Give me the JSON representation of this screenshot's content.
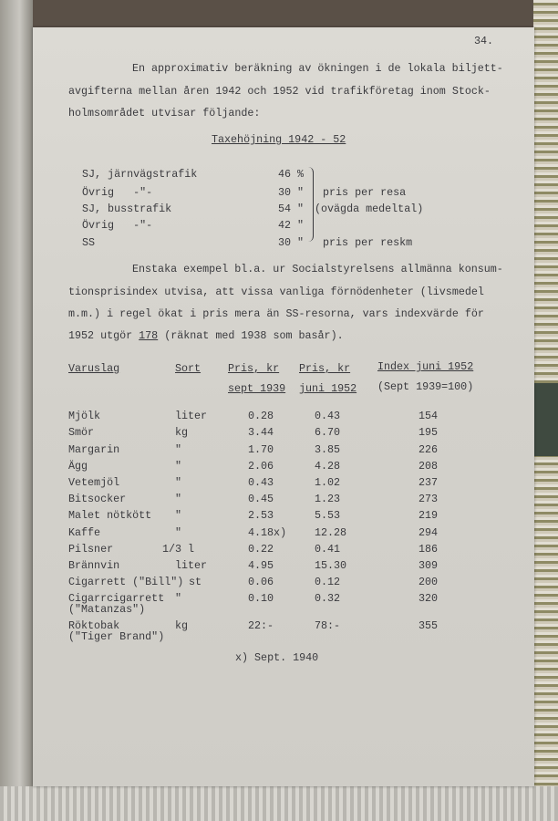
{
  "page_number": "34.",
  "intro_lines": [
    "En approximativ beräkning av ökningen i de lokala biljett-",
    "avgifterna mellan åren 1942 och 1952 vid trafikföretag inom Stock-",
    "holmsområdet utvisar följande:"
  ],
  "fare_table": {
    "title": "Taxehöjning 1942 - 52",
    "rows": [
      {
        "label": "SJ, järnvägstrafik",
        "value": "46 %"
      },
      {
        "label": "Övrig   -\"-",
        "value": "30 \""
      },
      {
        "label": "SJ, busstrafik",
        "value": "54 \""
      },
      {
        "label": "Övrig   -\"-",
        "value": "42 \""
      },
      {
        "label": "SS",
        "value": "30 \""
      }
    ],
    "brace_note_1": "pris per resa",
    "brace_note_2": "(ovägda medeltal)",
    "ss_note": "pris per reskm"
  },
  "paragraph2": {
    "line1": "Enstaka exempel bl.a. ur Socialstyrelsens allmänna konsum-",
    "line2": "tionsprisindex utvisa, att vissa vanliga förnödenheter (livsmedel",
    "line3": "m.m.) i regel ökat i pris mera än SS-resorna, vars indexvärde för",
    "line4_pre": "1952 utgör ",
    "line4_value": "178",
    "line4_post": " (räknat med 1938 som basår)."
  },
  "price_table": {
    "headers": {
      "item": "Varuslag",
      "unit": "Sort",
      "price1_a": "Pris, kr",
      "price1_b": "sept 1939",
      "price2_a": "Pris, kr",
      "price2_b": "juni 1952",
      "index_a": "Index juni 1952",
      "index_b": "(Sept 1939=100)"
    },
    "rows": [
      {
        "item": "Mjölk",
        "item2": "",
        "unit": "liter",
        "p1": "0.28",
        "p2": "0.43",
        "index": "154"
      },
      {
        "item": "Smör",
        "item2": "",
        "unit": "kg",
        "p1": "3.44",
        "p2": "6.70",
        "index": "195"
      },
      {
        "item": "Margarin",
        "item2": "",
        "unit": "\"",
        "p1": "1.70",
        "p2": "3.85",
        "index": "226"
      },
      {
        "item": "Ägg",
        "item2": "",
        "unit": "\"",
        "p1": "2.06",
        "p2": "4.28",
        "index": "208"
      },
      {
        "item": "Vetemjöl",
        "item2": "",
        "unit": "\"",
        "p1": "0.43",
        "p2": "1.02",
        "index": "237"
      },
      {
        "item": "Bitsocker",
        "item2": "",
        "unit": "\"",
        "p1": "0.45",
        "p2": "1.23",
        "index": "273"
      },
      {
        "item": "Malet nötkött",
        "item2": "",
        "unit": "\"",
        "p1": "2.53",
        "p2": "5.53",
        "index": "219"
      },
      {
        "item": "Kaffe",
        "item2": "",
        "unit": "\"",
        "p1": "4.18x)",
        "p2": "12.28",
        "index": "294"
      },
      {
        "item": "Pilsner",
        "item2": "",
        "unit": "1/3 l",
        "p1": "0.22",
        "p2": "0.41",
        "index": "186"
      },
      {
        "item": "Brännvin",
        "item2": "",
        "unit": "liter",
        "p1": "4.95",
        "p2": "15.30",
        "index": "309"
      },
      {
        "item": "Cigarrett (\"Bill\")",
        "item2": "",
        "unit": "st",
        "p1": "0.06",
        "p2": "0.12",
        "index": "200"
      },
      {
        "item": "Cigarrcigarrett",
        "item2": "(\"Matanzas\")",
        "unit": "\"",
        "p1": "0.10",
        "p2": "0.32",
        "index": "320"
      },
      {
        "item": "Röktobak",
        "item2": "(\"Tiger Brand\")",
        "unit": "kg",
        "p1": "22:-",
        "p2": "78:-",
        "index": "355"
      }
    ],
    "footnote": "x) Sept. 1940"
  }
}
